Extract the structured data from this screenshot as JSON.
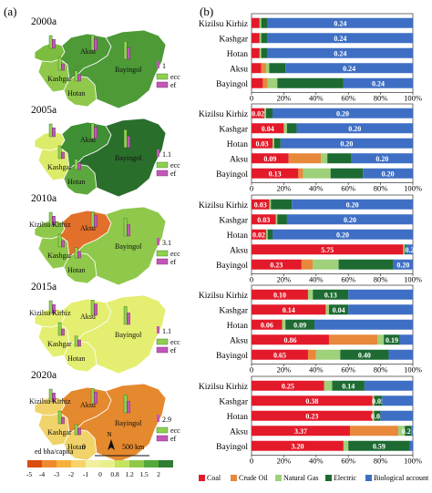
{
  "panel_labels": [
    "(a)",
    "(b)"
  ],
  "colors": {
    "Coal": "#e31a2a",
    "Crude Oil": "#e8883a",
    "Natural Gas": "#9fd07a",
    "Electric": "#1d6b33",
    "Biological account": "#3f6fc4"
  },
  "map_scale": {
    "title": "ed bha/capita",
    "ticks": [
      "-5",
      "-4",
      "-3",
      "-2",
      "-1",
      "0",
      "0.8",
      "1.2",
      "1.5",
      "2"
    ],
    "colors": [
      "#d94f0f",
      "#ef8a2f",
      "#f5b13a",
      "#f7d36a",
      "#f2f09a",
      "#e8f08a",
      "#c4e35f",
      "#8fc84a",
      "#55a83c",
      "#2e7d32"
    ],
    "scalebar_label": "500 km",
    "scalebar_zero": "0",
    "north_label": "N"
  },
  "map_legend": {
    "ecc": "ecc",
    "ef": "ef"
  },
  "regions": [
    "Kizilsu Kirhiz",
    "Kashgar",
    "Hotan",
    "Aksu",
    "Bayingol"
  ],
  "maps": [
    {
      "year": "2000a",
      "ref_value": "1",
      "fills": [
        "#7cbd3f",
        "#8fc84a",
        "#8fc84a",
        "#4d9a37",
        "#4d9a37"
      ],
      "labels": [
        {
          "text": "Aksu",
          "region": "Aksu"
        },
        {
          "text": "Bayingol",
          "region": "Bayingol"
        },
        {
          "text": "Kashgar",
          "region": "Kashgar"
        },
        {
          "text": "Hotan",
          "region": "Hotan"
        }
      ]
    },
    {
      "year": "2005a",
      "ref_value": "1.1",
      "fills": [
        "#dcec6a",
        "#dcec6a",
        "#5da83e",
        "#3f8f34",
        "#2a6e2c"
      ],
      "labels": [
        {
          "text": "Aksu",
          "region": "Aksu"
        },
        {
          "text": "Bayingol",
          "region": "Bayingol"
        },
        {
          "text": "Kashgar",
          "region": "Kashgar"
        },
        {
          "text": "Hotan",
          "region": "Hotan"
        }
      ]
    },
    {
      "year": "2010a",
      "ref_value": "3.1",
      "fills": [
        "#8fc84a",
        "#8fc84a",
        "#8fc84a",
        "#e3702a",
        "#8fc84a"
      ],
      "labels": [
        {
          "text": "Kizilsu Kirhiz",
          "region": "Kizilsu Kirhiz"
        },
        {
          "text": "Aksu",
          "region": "Aksu"
        },
        {
          "text": "Bayingol",
          "region": "Bayingol"
        },
        {
          "text": "Kashgar",
          "region": "Kashgar"
        },
        {
          "text": "Hotan",
          "region": "Hotan"
        }
      ]
    },
    {
      "year": "2015a",
      "ref_value": "1.1",
      "fills": [
        "#e4ee70",
        "#e4ee70",
        "#e4ee70",
        "#e4ee70",
        "#e4ee70"
      ],
      "labels": [
        {
          "text": "Kizilsu Kirhiz",
          "region": "Kizilsu Kirhiz"
        },
        {
          "text": "Aksu",
          "region": "Aksu"
        },
        {
          "text": "Bayingol",
          "region": "Bayingol"
        },
        {
          "text": "Kashgar",
          "region": "Kashgar"
        },
        {
          "text": "Hotan",
          "region": "Hotan"
        }
      ]
    },
    {
      "year": "2020a",
      "ref_value": "2.9",
      "fills": [
        "#f0d36a",
        "#f0d36a",
        "#f0d36a",
        "#e5892e",
        "#e5892e"
      ],
      "labels": [
        {
          "text": "Kizilsu Kirhiz",
          "region": "Kizilsu Kirhiz"
        },
        {
          "text": "Aksu",
          "region": "Aksu"
        },
        {
          "text": "Bayingol",
          "region": "Bayingol"
        },
        {
          "text": "Kashgar",
          "region": "Kashgar"
        },
        {
          "text": "Hotan",
          "region": "Hotan"
        }
      ]
    }
  ],
  "chart_data": {
    "type": "bar",
    "orientation": "horizontal",
    "stacked": "100%",
    "legend_position": "bottom",
    "xlim": [
      0,
      100
    ],
    "x_ticks": [
      "0",
      "20%",
      "40%",
      "60%",
      "80%",
      "100%"
    ],
    "series_names": [
      "Coal",
      "Crude Oil",
      "Natural Gas",
      "Electric",
      "Biological account"
    ],
    "panels": [
      {
        "rows": [
          {
            "label": "Kizilsu Kirhiz",
            "values": [
              5,
              0,
              1,
              4,
              90
            ],
            "labels": [
              "",
              "",
              "",
              "",
              "0.24"
            ]
          },
          {
            "label": "Kashgar",
            "values": [
              5,
              0,
              1,
              4,
              90
            ],
            "labels": [
              "",
              "",
              "",
              "",
              "0.24"
            ]
          },
          {
            "label": "Hotan",
            "values": [
              5,
              0,
              1,
              4,
              90
            ],
            "labels": [
              "",
              "",
              "",
              "",
              "0.24"
            ]
          },
          {
            "label": "Aksu",
            "values": [
              6,
              3,
              2,
              10,
              79
            ],
            "labels": [
              "",
              "",
              "",
              "",
              "0.24"
            ]
          },
          {
            "label": "Bayingol",
            "values": [
              7,
              3,
              6,
              41,
              43
            ],
            "labels": [
              "",
              "",
              "",
              "",
              "0.24"
            ]
          }
        ]
      },
      {
        "rows": [
          {
            "label": "Kizilsu Kirhiz",
            "values": [
              8,
              0,
              1,
              4,
              87
            ],
            "labels": [
              "0.02",
              "",
              "",
              "",
              "0.20"
            ]
          },
          {
            "label": "Kashgar",
            "values": [
              20,
              0,
              2,
              6,
              72
            ],
            "labels": [
              "0.04",
              "",
              "",
              "",
              "0.20"
            ]
          },
          {
            "label": "Hotan",
            "values": [
              13,
              0,
              1,
              4,
              82
            ],
            "labels": [
              "0.03",
              "",
              "",
              "",
              "0.20"
            ]
          },
          {
            "label": "Aksu",
            "values": [
              23,
              20,
              4,
              15,
              38
            ],
            "labels": [
              "0.09",
              "",
              "",
              "",
              "0.20"
            ]
          },
          {
            "label": "Bayingol",
            "values": [
              29,
              3,
              17,
              20,
              31
            ],
            "labels": [
              "0.13",
              "",
              "",
              "",
              "0.20"
            ]
          }
        ]
      },
      {
        "rows": [
          {
            "label": "Kizilsu Kirhiz",
            "values": [
              11,
              0,
              1,
              13,
              75
            ],
            "labels": [
              "0.03",
              "",
              "",
              "",
              "0.20"
            ]
          },
          {
            "label": "Kashgar",
            "values": [
              15,
              0,
              1,
              6,
              78
            ],
            "labels": [
              "0.03",
              "",
              "",
              "",
              "0.20"
            ]
          },
          {
            "label": "Hotan",
            "values": [
              9,
              0,
              1,
              3,
              87
            ],
            "labels": [
              "0.02",
              "",
              "",
              "",
              "0.20"
            ]
          },
          {
            "label": "Aksu",
            "values": [
              94,
              0,
              1,
              1,
              4
            ],
            "labels": [
              "5.75",
              "",
              "",
              "",
              "0.2"
            ]
          },
          {
            "label": "Bayingol",
            "values": [
              31,
              7,
              16,
              34,
              12
            ],
            "labels": [
              "0.23",
              "",
              "",
              "",
              "0.20"
            ]
          }
        ]
      },
      {
        "rows": [
          {
            "label": "Kizilsu Kirhiz",
            "values": [
              35,
              0,
              3,
              22,
              40
            ],
            "labels": [
              "0.10",
              "",
              "",
              "0.13",
              ""
            ]
          },
          {
            "label": "Kashgar",
            "values": [
              46,
              0,
              2,
              12,
              40
            ],
            "labels": [
              "0.14",
              "",
              "",
              "0.04",
              ""
            ]
          },
          {
            "label": "Hotan",
            "values": [
              19,
              0,
              2,
              18,
              61
            ],
            "labels": [
              "0.06",
              "",
              "",
              "0.09",
              ""
            ]
          },
          {
            "label": "Aksu",
            "values": [
              48,
              30,
              4,
              10,
              8
            ],
            "labels": [
              "0.86",
              "",
              "",
              "0.19",
              ""
            ]
          },
          {
            "label": "Bayingol",
            "values": [
              35,
              5,
              15,
              30,
              15
            ],
            "labels": [
              "0.65",
              "",
              "",
              "0.40",
              ""
            ]
          }
        ]
      },
      {
        "rows": [
          {
            "label": "Kizilsu Kirhiz",
            "values": [
              45,
              0,
              5,
              20,
              30
            ],
            "labels": [
              "0.25",
              "",
              "",
              "0.14",
              ""
            ]
          },
          {
            "label": "Kashgar",
            "values": [
              75,
              0,
              1,
              5,
              19
            ],
            "labels": [
              "0.38",
              "",
              "",
              "0.05",
              ""
            ]
          },
          {
            "label": "Hotan",
            "values": [
              75,
              0,
              1,
              4,
              20
            ],
            "labels": [
              "0.23",
              "",
              "",
              "0.03",
              ""
            ]
          },
          {
            "label": "Aksu",
            "values": [
              61,
              30,
              4,
              4,
              1
            ],
            "labels": [
              "3.37",
              "",
              "",
              "0.26",
              ""
            ]
          },
          {
            "label": "Bayingol",
            "values": [
              57,
              0,
              3,
              38,
              2
            ],
            "labels": [
              "3.20",
              "",
              "",
              "0.59",
              ""
            ]
          }
        ]
      }
    ]
  }
}
